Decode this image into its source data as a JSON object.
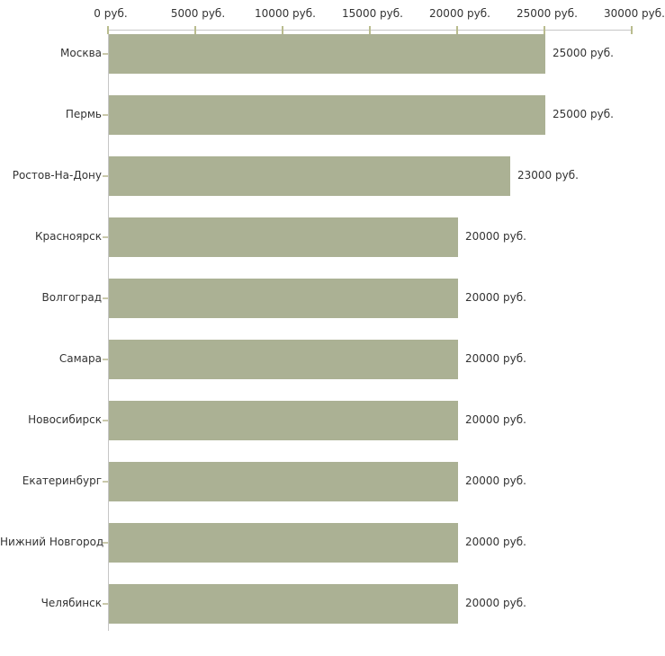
{
  "chart_data": {
    "type": "bar",
    "orientation": "horizontal",
    "categories": [
      "Москва",
      "Пермь",
      "Ростов-На-Дону",
      "Красноярск",
      "Волгоград",
      "Самара",
      "Новосибирск",
      "Екатеринбург",
      "Нижний Новгород",
      "Челябинск"
    ],
    "values": [
      25000,
      25000,
      23000,
      20000,
      20000,
      20000,
      20000,
      20000,
      20000,
      20000
    ],
    "value_labels": [
      "25000 руб.",
      "25000 руб.",
      "23000 руб.",
      "20000 руб.",
      "20000 руб.",
      "20000 руб.",
      "20000 руб.",
      "20000 руб.",
      "20000 руб.",
      "20000 руб."
    ],
    "x_axis": {
      "min": 0,
      "max": 30000,
      "tick_values": [
        0,
        5000,
        10000,
        15000,
        20000,
        25000,
        30000
      ],
      "tick_labels": [
        "0 руб.",
        "5000 руб.",
        "10000 руб.",
        "15000 руб.",
        "20000 руб.",
        "25000 руб.",
        "30000 руб."
      ]
    },
    "grid": false,
    "legend": false,
    "colors": {
      "bar": "#abb194",
      "axis_line": "#c6c6c6",
      "x_tick_mark": "#b9bc8e",
      "y_tick_mark": "#c9c8aa",
      "text": "#333333",
      "background": "#ffffff"
    }
  }
}
